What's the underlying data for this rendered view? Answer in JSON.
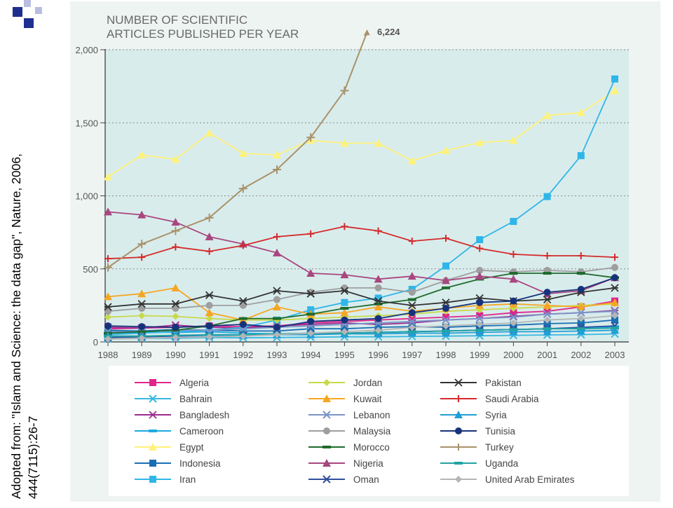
{
  "citation": {
    "line1": "Adopted from: \"Islam and Science: the data gap\", Nature, 2006,",
    "line2": "444(7115):26-7"
  },
  "chart_data": {
    "type": "line",
    "title_line1": "NUMBER OF SCIENTIFIC",
    "title_line2": "ARTICLES PUBLISHED PER YEAR",
    "annotation": "6,224",
    "x": [
      1988,
      1989,
      1990,
      1991,
      1992,
      1993,
      1994,
      1995,
      1996,
      1997,
      1998,
      1999,
      2000,
      2001,
      2002,
      2003
    ],
    "xtick_labels": [
      "1988",
      "1989",
      "1990",
      "1991",
      "1992",
      "1993",
      "1994",
      "1995",
      "1996",
      "1997",
      "1998",
      "1999",
      "2000",
      "2001",
      "2002",
      "2003"
    ],
    "yticks": [
      0,
      500,
      1000,
      1500,
      2000
    ],
    "ytick_labels": [
      "0",
      "500",
      "1,000",
      "1,500",
      "2,000"
    ],
    "ylim": [
      0,
      2000
    ],
    "grid": "horizontal dotted",
    "legend_position": "bottom",
    "series": [
      {
        "name": "Algeria",
        "color": "#e0258c",
        "marker": "square",
        "values": [
          90,
          95,
          100,
          110,
          105,
          110,
          130,
          140,
          150,
          160,
          170,
          180,
          200,
          210,
          240,
          280
        ]
      },
      {
        "name": "Bahrain",
        "color": "#3ab8e0",
        "marker": "x",
        "values": [
          20,
          25,
          25,
          30,
          28,
          30,
          32,
          35,
          35,
          38,
          40,
          42,
          45,
          48,
          50,
          55
        ]
      },
      {
        "name": "Bangladesh",
        "color": "#9b2a8e",
        "marker": "star",
        "values": [
          100,
          95,
          115,
          100,
          95,
          110,
          120,
          130,
          120,
          130,
          150,
          160,
          175,
          190,
          200,
          215
        ]
      },
      {
        "name": "Cameroon",
        "color": "#1eaadf",
        "marker": "dash",
        "values": [
          60,
          65,
          65,
          70,
          60,
          55,
          55,
          60,
          65,
          70,
          75,
          80,
          85,
          90,
          95,
          105
        ]
      },
      {
        "name": "Egypt",
        "color": "#fff27a",
        "marker": "triangle",
        "values": [
          1130,
          1280,
          1250,
          1430,
          1290,
          1280,
          1380,
          1360,
          1360,
          1240,
          1310,
          1365,
          1380,
          1550,
          1570,
          1720
        ]
      },
      {
        "name": "Indonesia",
        "color": "#1a6fb3",
        "marker": "square",
        "values": [
          80,
          75,
          85,
          80,
          75,
          75,
          90,
          90,
          100,
          105,
          100,
          110,
          115,
          125,
          130,
          150
        ]
      },
      {
        "name": "Iran",
        "color": "#2fb6e8",
        "marker": "square",
        "values": [
          50,
          60,
          70,
          80,
          100,
          150,
          220,
          270,
          300,
          360,
          520,
          700,
          825,
          995,
          1275,
          1800
        ]
      },
      {
        "name": "Jordan",
        "color": "#c7d94a",
        "marker": "diamond",
        "values": [
          170,
          180,
          175,
          160,
          150,
          150,
          160,
          170,
          180,
          190,
          210,
          220,
          230,
          240,
          250,
          260
        ]
      },
      {
        "name": "Kuwait",
        "color": "#f5a623",
        "marker": "triangle",
        "values": [
          310,
          330,
          370,
          200,
          150,
          240,
          190,
          200,
          240,
          210,
          230,
          250,
          260,
          250,
          240,
          270
        ]
      },
      {
        "name": "Lebanon",
        "color": "#7a95c8",
        "marker": "x",
        "values": [
          70,
          70,
          80,
          80,
          90,
          100,
          110,
          120,
          130,
          140,
          150,
          160,
          170,
          190,
          200,
          210
        ]
      },
      {
        "name": "Malaysia",
        "color": "#9e9e9e",
        "marker": "circle",
        "values": [
          210,
          230,
          230,
          250,
          250,
          290,
          340,
          370,
          370,
          340,
          420,
          490,
          480,
          490,
          480,
          510
        ]
      },
      {
        "name": "Morocco",
        "color": "#1f6b2e",
        "marker": "dash",
        "values": [
          60,
          70,
          80,
          110,
          160,
          160,
          190,
          230,
          260,
          290,
          370,
          430,
          470,
          470,
          470,
          440
        ]
      },
      {
        "name": "Nigeria",
        "color": "#a8467f",
        "marker": "triangle",
        "values": [
          890,
          870,
          820,
          720,
          670,
          610,
          470,
          460,
          430,
          450,
          420,
          450,
          430,
          330,
          350,
          440
        ]
      },
      {
        "name": "Oman",
        "color": "#2e4f9c",
        "marker": "x",
        "values": [
          30,
          35,
          40,
          45,
          45,
          50,
          55,
          60,
          65,
          70,
          75,
          80,
          85,
          90,
          100,
          110
        ]
      },
      {
        "name": "Pakistan",
        "color": "#333333",
        "marker": "star",
        "values": [
          240,
          260,
          260,
          320,
          280,
          350,
          330,
          350,
          280,
          250,
          270,
          300,
          280,
          290,
          340,
          370
        ]
      },
      {
        "name": "Saudi Arabia",
        "color": "#d42b2b",
        "marker": "plus",
        "values": [
          570,
          580,
          650,
          620,
          660,
          720,
          740,
          790,
          760,
          690,
          710,
          640,
          600,
          590,
          590,
          580
        ]
      },
      {
        "name": "Syria",
        "color": "#1f9fd6",
        "marker": "triangle",
        "values": [
          40,
          40,
          45,
          45,
          45,
          50,
          50,
          55,
          55,
          60,
          60,
          65,
          70,
          70,
          75,
          80
        ]
      },
      {
        "name": "Tunisia",
        "color": "#16327a",
        "marker": "circle",
        "values": [
          110,
          105,
          100,
          110,
          120,
          100,
          140,
          150,
          160,
          200,
          230,
          270,
          280,
          340,
          360,
          440
        ]
      },
      {
        "name": "Turkey",
        "color": "#a8926a",
        "marker": "plus",
        "values": [
          510,
          670,
          760,
          850,
          1050,
          1180,
          1400,
          1720,
          2130,
          null,
          null,
          null,
          null,
          null,
          null,
          null
        ]
      },
      {
        "name": "Uganda",
        "color": "#23a3a3",
        "marker": "dash",
        "values": [
          40,
          40,
          45,
          50,
          50,
          55,
          60,
          60,
          65,
          70,
          75,
          80,
          85,
          90,
          90,
          95
        ]
      },
      {
        "name": "United Arab Emirates",
        "color": "#b5b5b5",
        "marker": "diamond",
        "values": [
          20,
          25,
          30,
          35,
          40,
          50,
          60,
          70,
          80,
          100,
          110,
          120,
          130,
          150,
          160,
          180
        ]
      }
    ]
  }
}
